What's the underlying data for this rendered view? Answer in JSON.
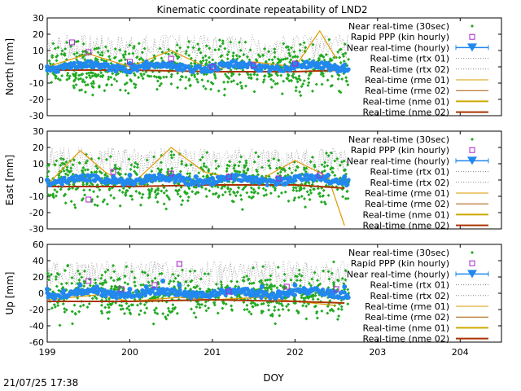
{
  "title": "Kinematic coordinate repeatability of LND2",
  "timestamp": "21/07/25 17:38",
  "xlabel": "DOY",
  "x_ticks": [
    "199",
    "200",
    "201",
    "202",
    "203",
    "204"
  ],
  "legend": [
    {
      "label": "Near real-time (30sec)",
      "color": "#22aa22",
      "marker": "diamond"
    },
    {
      "label": "Rapid PPP (kin hourly)",
      "color": "#aa22cc",
      "marker": "open-square"
    },
    {
      "label": "Near real-time (hourly)",
      "color": "#2288ee",
      "marker": "triangle-errorbar"
    },
    {
      "label": "Real-time (rtx 01)",
      "color": "#888888",
      "marker": "dotted-line"
    },
    {
      "label": "Real-time (rtx 02)",
      "color": "#888888",
      "marker": "dotted-line"
    },
    {
      "label": "Real-time (rme 01)",
      "color": "#dd9900",
      "marker": "line"
    },
    {
      "label": "Real-time (rme 02)",
      "color": "#aa5500",
      "marker": "line"
    },
    {
      "label": "Real-time (nme 01)",
      "color": "#ccaa00",
      "marker": "thick-line"
    },
    {
      "label": "Real-time (nme 02)",
      "color": "#aa3300",
      "marker": "thick-line"
    }
  ],
  "chart_data": [
    {
      "type": "scatter",
      "panel": "north",
      "ylabel": "North [mm]",
      "ylim": [
        -30,
        30
      ],
      "y_ticks": [
        "30",
        "20",
        "10",
        "0",
        "-10",
        "-20",
        "-30"
      ],
      "xlim": [
        199,
        204.5
      ],
      "x_ticks": [
        199,
        200,
        201,
        202,
        203,
        204
      ],
      "series_notes": "data ends near DOY 202.65",
      "series": [
        {
          "name": "Near real-time (hourly)",
          "x": [
            199.0,
            199.2,
            199.4,
            199.6,
            199.8,
            200.0,
            200.2,
            200.4,
            200.6,
            200.8,
            201.0,
            201.2,
            201.4,
            201.6,
            201.8,
            202.0,
            202.2,
            202.4,
            202.6
          ],
          "y": [
            0,
            1,
            2,
            1,
            0,
            2,
            3,
            2,
            1,
            0,
            1,
            0,
            1,
            0,
            -1,
            0,
            1,
            2,
            1
          ]
        },
        {
          "name": "Rapid PPP (kin hourly)",
          "x": [
            199.3,
            199.5,
            200.0,
            200.5,
            201.0,
            201.5,
            202.0
          ],
          "y": [
            15,
            9,
            3,
            5,
            0,
            1,
            2
          ]
        },
        {
          "name": "Real-time (rme 01)",
          "x": [
            199.0,
            199.5,
            200.0,
            200.5,
            201.0,
            201.5,
            202.0,
            202.3,
            202.5
          ],
          "y": [
            0,
            8,
            0,
            10,
            -2,
            3,
            0,
            22,
            5
          ]
        },
        {
          "name": "Real-time (nme 02)",
          "x": [
            199.0,
            200.0,
            201.0,
            202.0,
            202.6
          ],
          "y": [
            -2,
            -2,
            -3,
            -3,
            -2
          ]
        }
      ]
    },
    {
      "type": "scatter",
      "panel": "east",
      "ylabel": "East [mm]",
      "ylim": [
        -30,
        30
      ],
      "y_ticks": [
        "30",
        "20",
        "10",
        "0",
        "-10",
        "-20",
        "-30"
      ],
      "xlim": [
        199,
        204.5
      ],
      "x_ticks": [
        199,
        200,
        201,
        202,
        203,
        204
      ],
      "series": [
        {
          "name": "Near real-time (hourly)",
          "x": [
            199.0,
            199.2,
            199.4,
            199.6,
            199.8,
            200.0,
            200.2,
            200.4,
            200.6,
            200.8,
            201.0,
            201.2,
            201.4,
            201.6,
            201.8,
            202.0,
            202.2,
            202.4,
            202.6
          ],
          "y": [
            0,
            1,
            2,
            1,
            2,
            3,
            2,
            1,
            3,
            2,
            1,
            2,
            1,
            0,
            1,
            2,
            1,
            3,
            2
          ]
        },
        {
          "name": "Rapid PPP (kin hourly)",
          "x": [
            199.5,
            199.8,
            200.5,
            201.2,
            201.8,
            202.3
          ],
          "y": [
            -12,
            5,
            4,
            2,
            1,
            3
          ]
        },
        {
          "name": "Real-time (rme 01)",
          "x": [
            199.0,
            199.4,
            199.7,
            200.0,
            200.5,
            200.9,
            201.5,
            202.0,
            202.4,
            202.6
          ],
          "y": [
            -3,
            18,
            5,
            -4,
            20,
            5,
            -2,
            12,
            2,
            -28
          ]
        },
        {
          "name": "Real-time (nme 02)",
          "x": [
            199.0,
            200.0,
            201.0,
            202.0,
            202.6
          ],
          "y": [
            -4,
            -4,
            -3,
            -3,
            -5
          ]
        }
      ]
    },
    {
      "type": "scatter",
      "panel": "up",
      "ylabel": "Up [mm]",
      "ylim": [
        -60,
        60
      ],
      "y_ticks": [
        "60",
        "40",
        "20",
        "0",
        "-20",
        "-40",
        "-60"
      ],
      "xlim": [
        199,
        204.5
      ],
      "x_ticks": [
        199,
        200,
        201,
        202,
        203,
        204
      ],
      "series": [
        {
          "name": "Near real-time (hourly)",
          "x": [
            199.0,
            199.2,
            199.4,
            199.6,
            199.8,
            200.0,
            200.2,
            200.4,
            200.6,
            200.8,
            201.0,
            201.2,
            201.4,
            201.6,
            201.8,
            202.0,
            202.2,
            202.4,
            202.6
          ],
          "y": [
            5,
            3,
            10,
            8,
            0,
            5,
            8,
            15,
            10,
            0,
            -2,
            2,
            5,
            8,
            2,
            10,
            5,
            0,
            8
          ]
        },
        {
          "name": "Rapid PPP (kin hourly)",
          "x": [
            199.5,
            199.9,
            200.3,
            200.6,
            201.2,
            201.9,
            202.5
          ],
          "y": [
            15,
            5,
            10,
            36,
            2,
            8,
            5
          ]
        },
        {
          "name": "Real-time (rme 01)",
          "x": [
            199.0,
            199.6,
            200.0,
            200.6,
            201.0,
            201.6,
            202.0,
            202.5
          ],
          "y": [
            -8,
            -2,
            -10,
            -5,
            -8,
            -5,
            -10,
            -15
          ]
        },
        {
          "name": "Real-time (nme 02)",
          "x": [
            199.0,
            200.0,
            201.0,
            202.0,
            202.6
          ],
          "y": [
            -10,
            -10,
            -8,
            -10,
            -12
          ]
        }
      ]
    }
  ]
}
